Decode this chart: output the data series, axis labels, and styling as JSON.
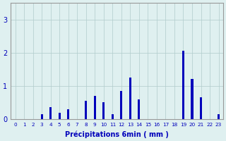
{
  "categories": [
    0,
    1,
    2,
    3,
    4,
    5,
    6,
    7,
    8,
    9,
    10,
    11,
    12,
    13,
    14,
    15,
    16,
    17,
    18,
    19,
    20,
    21,
    22,
    23
  ],
  "values": [
    0,
    0,
    0,
    0.15,
    0.35,
    0.2,
    0.3,
    0,
    0.55,
    0.7,
    0.5,
    0.15,
    0.85,
    1.25,
    0.6,
    0,
    0,
    0,
    0,
    2.05,
    1.2,
    0.65,
    0,
    0.15
  ],
  "bar_color": "#0000bb",
  "bg_color": "#dff0f0",
  "grid_color": "#b0cccc",
  "axis_color": "#999999",
  "text_color": "#0000bb",
  "xlabel": "Précipitations 6min ( mm )",
  "ylim": [
    0,
    3.5
  ],
  "yticks": [
    0,
    1,
    2,
    3
  ],
  "bar_width": 0.25
}
